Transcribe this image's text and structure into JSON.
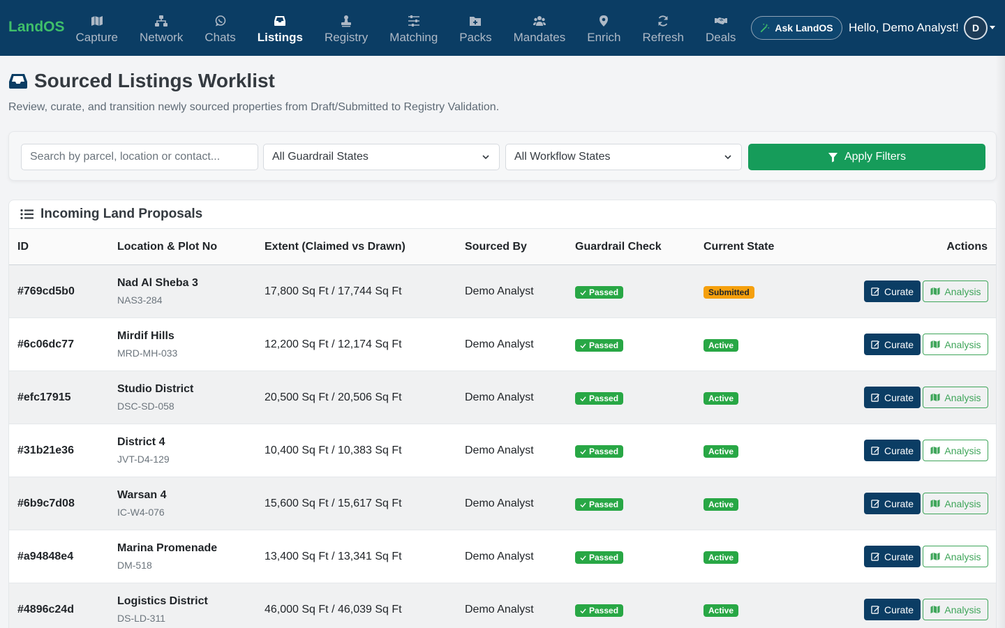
{
  "brand": "LandOS",
  "nav": [
    {
      "key": "capture",
      "label": "Capture",
      "icon": "map-icon",
      "active": false
    },
    {
      "key": "network",
      "label": "Network",
      "icon": "sitemap-icon",
      "active": false
    },
    {
      "key": "chats",
      "label": "Chats",
      "icon": "whatsapp-icon",
      "active": false
    },
    {
      "key": "listings",
      "label": "Listings",
      "icon": "inbox-icon",
      "active": true
    },
    {
      "key": "registry",
      "label": "Registry",
      "icon": "stamp-icon",
      "active": false
    },
    {
      "key": "matching",
      "label": "Matching",
      "icon": "sliders-icon",
      "active": false
    },
    {
      "key": "packs",
      "label": "Packs",
      "icon": "folder-plus-icon",
      "active": false
    },
    {
      "key": "mandates",
      "label": "Mandates",
      "icon": "users-icon",
      "active": false
    },
    {
      "key": "enrich",
      "label": "Enrich",
      "icon": "map-marker-icon",
      "active": false
    },
    {
      "key": "refresh",
      "label": "Refresh",
      "icon": "sync-icon",
      "active": false
    },
    {
      "key": "deals",
      "label": "Deals",
      "icon": "handshake-icon",
      "active": false
    }
  ],
  "header": {
    "ask_label": "Ask LandOS",
    "greeting": "Hello, Demo Analyst!",
    "avatar_initial": "D"
  },
  "page": {
    "title": "Sourced Listings Worklist",
    "subtitle": "Review, curate, and transition newly sourced properties from Draft/Submitted to Registry Validation."
  },
  "filters": {
    "search_placeholder": "Search by parcel, location or contact...",
    "guardrail_selected": "All Guardrail States",
    "workflow_selected": "All Workflow States",
    "apply_label": "Apply Filters"
  },
  "table": {
    "card_title": "Incoming Land Proposals",
    "columns": [
      "ID",
      "Location & Plot No",
      "Extent (Claimed vs Drawn)",
      "Sourced By",
      "Guardrail Check",
      "Current State",
      "Actions"
    ],
    "curate_label": "Curate",
    "analysis_label": "Analysis",
    "rows": [
      {
        "id": "#769cd5b0",
        "location": "Nad Al Sheba 3",
        "plot": "NAS3-284",
        "extent": "17,800 Sq Ft / 17,744 Sq Ft",
        "sourced_by": "Demo Analyst",
        "guardrail": "Passed",
        "state": "Submitted"
      },
      {
        "id": "#6c06dc77",
        "location": "Mirdif Hills",
        "plot": "MRD-MH-033",
        "extent": "12,200 Sq Ft / 12,174 Sq Ft",
        "sourced_by": "Demo Analyst",
        "guardrail": "Passed",
        "state": "Active"
      },
      {
        "id": "#efc17915",
        "location": "Studio District",
        "plot": "DSC-SD-058",
        "extent": "20,500 Sq Ft / 20,506 Sq Ft",
        "sourced_by": "Demo Analyst",
        "guardrail": "Passed",
        "state": "Active"
      },
      {
        "id": "#31b21e36",
        "location": "District 4",
        "plot": "JVT-D4-129",
        "extent": "10,400 Sq Ft / 10,383 Sq Ft",
        "sourced_by": "Demo Analyst",
        "guardrail": "Passed",
        "state": "Active"
      },
      {
        "id": "#6b9c7d08",
        "location": "Warsan 4",
        "plot": "IC-W4-076",
        "extent": "15,600 Sq Ft / 15,617 Sq Ft",
        "sourced_by": "Demo Analyst",
        "guardrail": "Passed",
        "state": "Active"
      },
      {
        "id": "#a94848e4",
        "location": "Marina Promenade",
        "plot": "DM-518",
        "extent": "13,400 Sq Ft / 13,341 Sq Ft",
        "sourced_by": "Demo Analyst",
        "guardrail": "Passed",
        "state": "Active"
      },
      {
        "id": "#4896c24d",
        "location": "Logistics District",
        "plot": "DS-LD-311",
        "extent": "46,000 Sq Ft / 46,039 Sq Ft",
        "sourced_by": "Demo Analyst",
        "guardrail": "Passed",
        "state": "Active"
      }
    ]
  },
  "colors": {
    "navbar": "#0b3d64",
    "brand": "#3fbf6a",
    "apply": "#169c5a",
    "passed": "#28a745",
    "submitted": "#f5a00d",
    "curate": "#0b3d64",
    "analysis": "#3fa55a"
  }
}
